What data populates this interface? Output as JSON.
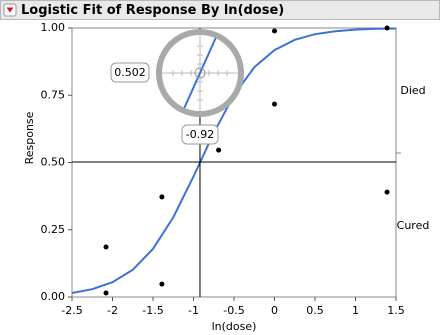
{
  "chart_data": {
    "type": "logistic",
    "title": "Logistic Fit of Response By ln(dose)",
    "xlabel": "ln(dose)",
    "ylabel": "Response",
    "levels": [
      "Died",
      "Cured"
    ],
    "xlim": [
      -2.5,
      1.5
    ],
    "xticks": [
      -2.5,
      -2,
      -1.5,
      -1,
      -0.5,
      0,
      0.5,
      1,
      1.5
    ],
    "ylim": [
      0,
      1
    ],
    "yticks": [
      {
        "value": 0,
        "label": "0.00"
      },
      {
        "value": 0.25,
        "label": "0.25"
      },
      {
        "value": 0.5,
        "label": "0.50"
      },
      {
        "value": 0.75,
        "label": "0.75"
      },
      {
        "value": 1,
        "label": "1.00"
      }
    ],
    "points": {
      "color": "#000000",
      "x": [
        -2.08,
        -2.08,
        -1.39,
        -1.39,
        -0.69,
        0,
        0,
        1.39,
        1.39
      ],
      "values": [
        0.186,
        0.015,
        0.372,
        0.048,
        0.546,
        0.989,
        0.717,
        1.0,
        0.39
      ]
    },
    "fit": {
      "color": "#3f72d9",
      "x": [
        -2.5,
        -2.25,
        -2,
        -1.75,
        -1.5,
        -1.25,
        -1,
        -0.75,
        -0.5,
        -0.25,
        0,
        0.25,
        0.5,
        0.75,
        1,
        1.25,
        1.5
      ],
      "values": [
        0.015,
        0.029,
        0.055,
        0.101,
        0.179,
        0.296,
        0.448,
        0.61,
        0.751,
        0.854,
        0.918,
        0.956,
        0.977,
        0.988,
        0.994,
        0.997,
        0.998
      ]
    },
    "crosshair": {
      "x": -0.92,
      "y": 0.502
    }
  }
}
